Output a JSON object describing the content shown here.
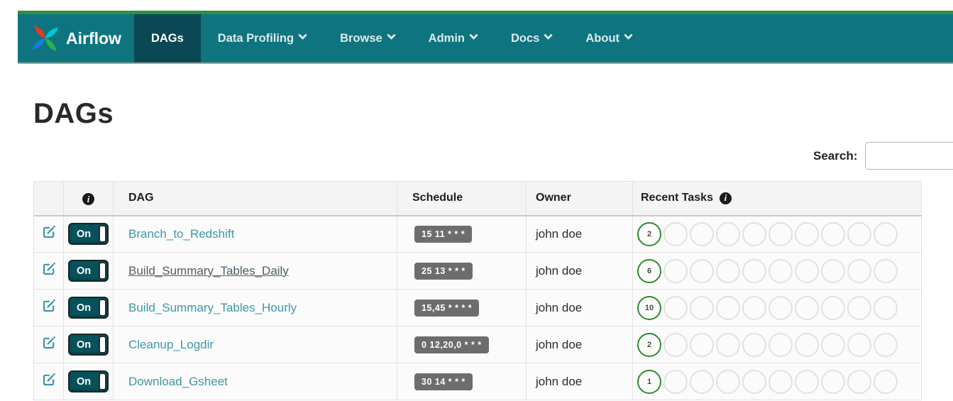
{
  "colors": {
    "navbar_bg": "#0e7580",
    "navbar_active_bg": "#0a4953",
    "navbar_top_border": "#2e9040",
    "link_teal": "#3d97a5",
    "visited_link": "#4d5d66",
    "toggle_bg": "#07525a",
    "schedule_badge_bg": "#6d6d6d",
    "success_circle_green": "#2e8b2e",
    "logo_red": "#e43921",
    "logo_cyan": "#00c7d4",
    "logo_green": "#2bb24c",
    "logo_blue": "#1a7ae0"
  },
  "navbar": {
    "brand": "Airflow",
    "items": [
      {
        "label": "DAGs",
        "active": true,
        "caret": false
      },
      {
        "label": "Data Profiling",
        "active": false,
        "caret": true
      },
      {
        "label": "Browse",
        "active": false,
        "caret": true
      },
      {
        "label": "Admin",
        "active": false,
        "caret": true
      },
      {
        "label": "Docs",
        "active": false,
        "caret": true
      },
      {
        "label": "About",
        "active": false,
        "caret": true
      }
    ]
  },
  "page": {
    "title": "DAGs"
  },
  "search": {
    "label": "Search:",
    "value": ""
  },
  "icons": {
    "info_glyph": "i"
  },
  "table": {
    "headers": {
      "dag": "DAG",
      "schedule": "Schedule",
      "owner": "Owner",
      "recent_tasks": "Recent Tasks"
    },
    "recent_tasks_total_circles": 10,
    "rows": [
      {
        "toggle": "On",
        "dag": "Branch_to_Redshift",
        "schedule": "15 11 * * *",
        "owner": "john doe",
        "success_count": "2",
        "visited": false
      },
      {
        "toggle": "On",
        "dag": "Build_Summary_Tables_Daily",
        "schedule": "25 13 * * *",
        "owner": "john doe",
        "success_count": "6",
        "visited": true
      },
      {
        "toggle": "On",
        "dag": "Build_Summary_Tables_Hourly",
        "schedule": "15,45 * * * *",
        "owner": "john doe",
        "success_count": "10",
        "visited": false
      },
      {
        "toggle": "On",
        "dag": "Cleanup_Logdir",
        "schedule": "0 12,20,0 * * *",
        "owner": "john doe",
        "success_count": "2",
        "visited": false
      },
      {
        "toggle": "On",
        "dag": "Download_Gsheet",
        "schedule": "30 14 * * *",
        "owner": "john doe",
        "success_count": "1",
        "visited": false
      }
    ]
  }
}
